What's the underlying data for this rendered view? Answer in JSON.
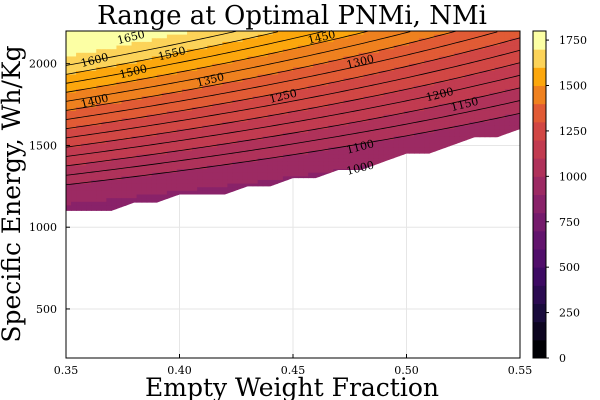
{
  "chart_data": {
    "type": "contour",
    "title": "Range at Optimal PNMi, NMi",
    "xlabel": "Empty Weight Fraction",
    "ylabel": "Specific Energy, Wh/Kg",
    "xlim": [
      0.35,
      0.55
    ],
    "ylim": [
      200,
      2200
    ],
    "xticks": [
      "0.35",
      "0.40",
      "0.45",
      "0.50",
      "0.55"
    ],
    "xtick_values": [
      0.35,
      0.4,
      0.45,
      0.5,
      0.55
    ],
    "yticks": [
      "500",
      "1000",
      "1500",
      "2000"
    ],
    "ytick_values": [
      500,
      1000,
      1500,
      2000
    ],
    "grid": true,
    "feasible_boundary": [
      [
        0.35,
        1100
      ],
      [
        0.37,
        1100
      ],
      [
        0.38,
        1150
      ],
      [
        0.39,
        1150
      ],
      [
        0.4,
        1200
      ],
      [
        0.42,
        1200
      ],
      [
        0.43,
        1250
      ],
      [
        0.44,
        1250
      ],
      [
        0.45,
        1300
      ],
      [
        0.46,
        1300
      ],
      [
        0.47,
        1350
      ],
      [
        0.48,
        1350
      ],
      [
        0.49,
        1400
      ],
      [
        0.5,
        1450
      ],
      [
        0.51,
        1450
      ],
      [
        0.53,
        1550
      ],
      [
        0.54,
        1550
      ],
      [
        0.55,
        1600
      ]
    ],
    "contour_labels": [
      {
        "text": "1650",
        "x": 0.379,
        "y": 2140
      },
      {
        "text": "1600",
        "x": 0.363,
        "y": 2000
      },
      {
        "text": "1550",
        "x": 0.397,
        "y": 2040
      },
      {
        "text": "1500",
        "x": 0.38,
        "y": 1930
      },
      {
        "text": "1450",
        "x": 0.463,
        "y": 2140
      },
      {
        "text": "1400",
        "x": 0.363,
        "y": 1750
      },
      {
        "text": "1350",
        "x": 0.414,
        "y": 1880
      },
      {
        "text": "1300",
        "x": 0.48,
        "y": 1990
      },
      {
        "text": "1250",
        "x": 0.446,
        "y": 1780
      },
      {
        "text": "1200",
        "x": 0.515,
        "y": 1790
      },
      {
        "text": "1150",
        "x": 0.526,
        "y": 1730
      },
      {
        "text": "1100",
        "x": 0.48,
        "y": 1470
      },
      {
        "text": "1000",
        "x": 0.48,
        "y": 1340
      }
    ],
    "colorbar": {
      "min": 0,
      "max": 1800,
      "levels": [
        0,
        100,
        200,
        300,
        400,
        500,
        600,
        700,
        800,
        900,
        1000,
        1100,
        1200,
        1300,
        1400,
        1500,
        1600,
        1700,
        1800
      ],
      "ticks": [
        "0",
        "250",
        "500",
        "750",
        "1000",
        "1250",
        "1500",
        "1750"
      ],
      "tick_values": [
        0,
        250,
        500,
        750,
        1000,
        1250,
        1500,
        1750
      ],
      "colormap": "inferno"
    },
    "colors": {
      "background": "#ffffff",
      "grid": "#e6e6e6",
      "axis": "#000000"
    }
  }
}
